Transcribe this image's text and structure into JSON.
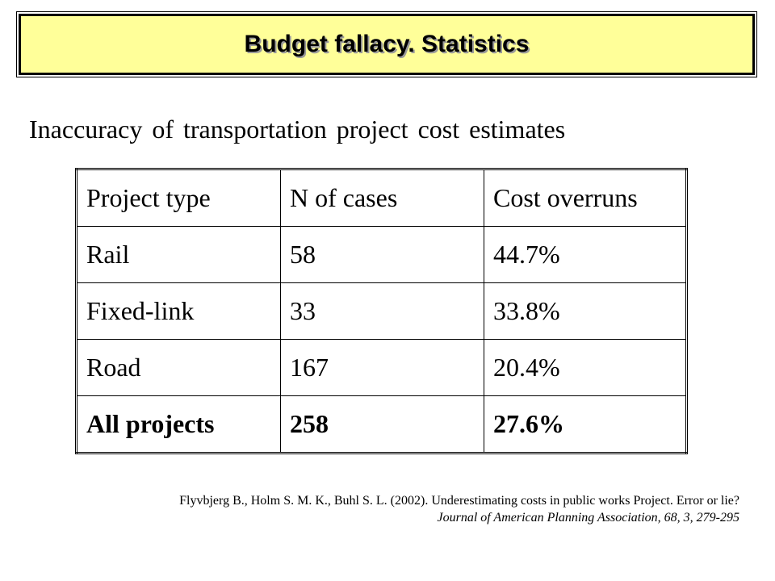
{
  "title": "Budget fallacy. Statistics",
  "subtitle": "Inaccuracy of transportation project cost estimates",
  "table": {
    "headers": [
      "Project type",
      "N of cases",
      "Cost overruns"
    ],
    "rows": [
      [
        "Rail",
        "58",
        "44.7%"
      ],
      [
        "Fixed-link",
        "33",
        "33.8%"
      ],
      [
        "Road",
        "167",
        "20.4%"
      ]
    ],
    "total": [
      "All projects",
      "258",
      "27.6%"
    ]
  },
  "citation": {
    "authors": "Flyvbjerg B., Holm S. M. K., Buhl S. L. (2002). Underestimating costs in public works Project. Error or lie?",
    "journal": "Journal of American Planning Association, 68, 3, 279-295"
  }
}
